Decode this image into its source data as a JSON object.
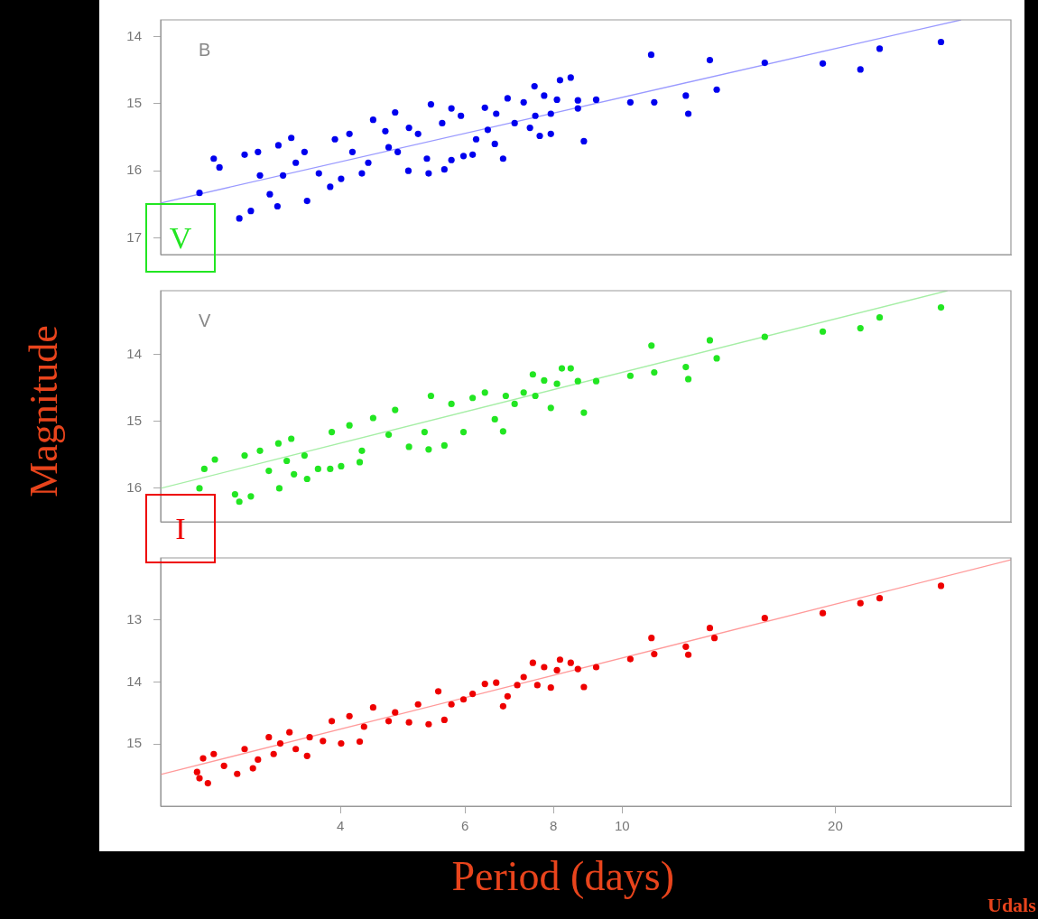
{
  "chart_data": [
    {
      "type": "scatter",
      "annotations": [
        "B",
        "V"
      ],
      "xlim": [
        2.23,
        35.4
      ],
      "xticks": [
        4,
        6,
        8,
        10,
        20
      ],
      "log": "x",
      "ylim": [
        17.25,
        13.75
      ],
      "yticks": [
        14,
        15,
        16,
        17
      ],
      "grid": false,
      "marker": "circle",
      "tick_labels": "y",
      "series": [
        {
          "type": "scatter",
          "color": "#0000ee",
          "x": [
            2.53,
            2.65,
            2.7,
            2.88,
            2.99,
            2.93,
            3.06,
            3.27,
            3.41,
            3.26,
            3.59,
            3.18,
            3.08,
            3.32,
            3.46,
            3.56,
            3.73,
            3.87,
            3.93,
            4.12,
            4.16,
            4.01,
            4.29,
            4.45,
            4.38,
            4.63,
            4.78,
            4.68,
            4.82,
            4.99,
            5.0,
            5.15,
            5.33,
            5.37,
            5.3,
            5.57,
            5.61,
            5.74,
            5.74,
            5.92,
            5.97,
            6.15,
            6.22,
            6.4,
            6.46,
            6.61,
            6.64,
            6.79,
            6.89,
            7.05,
            7.26,
            7.41,
            7.52,
            7.54,
            7.76,
            7.65,
            7.93,
            7.93,
            8.09,
            8.17,
            8.46,
            8.66,
            8.66,
            8.83,
            9.19,
            10.27,
            10.99,
            11.1,
            12.3,
            12.4,
            13.3,
            13.6,
            15.9,
            19.2,
            21.7,
            23.1,
            28.2
          ],
          "values": [
            16.33,
            15.82,
            15.95,
            16.71,
            16.6,
            15.76,
            15.72,
            15.62,
            15.51,
            16.53,
            16.45,
            16.35,
            16.07,
            16.07,
            15.88,
            15.72,
            16.04,
            16.24,
            15.53,
            15.45,
            15.72,
            16.12,
            16.04,
            15.24,
            15.88,
            15.41,
            15.13,
            15.65,
            15.72,
            16.0,
            15.36,
            15.45,
            16.04,
            15.01,
            15.82,
            15.29,
            15.98,
            15.07,
            15.84,
            15.18,
            15.78,
            15.76,
            15.53,
            15.06,
            15.39,
            15.6,
            15.15,
            15.82,
            14.92,
            15.29,
            14.98,
            15.36,
            14.74,
            15.18,
            14.88,
            15.48,
            15.45,
            15.15,
            14.94,
            14.65,
            14.61,
            14.95,
            15.07,
            15.56,
            14.94,
            14.98,
            14.27,
            14.98,
            14.88,
            15.15,
            14.35,
            14.79,
            14.39,
            14.4,
            14.49,
            14.18,
            14.08
          ]
        },
        {
          "type": "line",
          "color": "#9a9aff",
          "marker": "none",
          "x": [
            2.23,
            30.1
          ],
          "values": [
            16.48,
            13.75
          ]
        }
      ]
    },
    {
      "type": "scatter",
      "annotations": [
        "V",
        "I"
      ],
      "xlim": [
        2.23,
        35.4
      ],
      "xticks": [
        4,
        6,
        8,
        10,
        20
      ],
      "log": "x",
      "ylim": [
        16.5,
        13.05
      ],
      "yticks": [
        14,
        15,
        16
      ],
      "grid": false,
      "marker": "circle",
      "tick_labels": "y",
      "ylabel": "Magnitude",
      "series": [
        {
          "type": "scatter",
          "color": "#22e622",
          "x": [
            2.53,
            2.57,
            2.66,
            2.84,
            2.88,
            2.99,
            2.93,
            3.08,
            3.27,
            3.41,
            3.28,
            3.44,
            3.59,
            3.17,
            3.36,
            3.56,
            3.72,
            3.89,
            3.87,
            4.01,
            4.12,
            4.26,
            4.45,
            4.29,
            4.78,
            4.68,
            5.0,
            5.33,
            5.37,
            5.26,
            5.61,
            5.74,
            5.97,
            6.15,
            6.4,
            6.61,
            6.79,
            6.85,
            7.05,
            7.26,
            7.48,
            7.54,
            7.76,
            7.93,
            8.09,
            8.22,
            8.46,
            8.66,
            8.83,
            9.19,
            10.27,
            11.0,
            11.1,
            12.3,
            12.4,
            13.3,
            13.6,
            15.9,
            19.2,
            21.7,
            23.1,
            28.2
          ],
          "values": [
            16.0,
            15.71,
            15.57,
            16.09,
            16.2,
            16.12,
            15.51,
            15.44,
            15.33,
            15.26,
            16.0,
            15.79,
            15.86,
            15.74,
            15.59,
            15.51,
            15.71,
            15.16,
            15.71,
            15.67,
            15.06,
            15.61,
            14.95,
            15.44,
            14.83,
            15.2,
            15.38,
            15.42,
            14.62,
            15.16,
            15.36,
            14.74,
            15.16,
            14.65,
            14.57,
            14.97,
            15.15,
            14.62,
            14.74,
            14.57,
            14.3,
            14.62,
            14.39,
            14.8,
            14.44,
            14.21,
            14.21,
            14.4,
            14.87,
            14.4,
            14.32,
            13.87,
            14.27,
            14.19,
            14.37,
            13.79,
            14.06,
            13.74,
            13.66,
            13.61,
            13.45,
            13.3
          ]
        },
        {
          "type": "line",
          "color": "#a6eea6",
          "marker": "none",
          "x": [
            2.23,
            28.8
          ],
          "values": [
            16.0,
            13.05
          ]
        }
      ]
    },
    {
      "type": "scatter",
      "annotations": [
        "Udals"
      ],
      "xlim": [
        2.23,
        35.4
      ],
      "xticks": [
        4,
        6,
        8,
        10,
        20
      ],
      "log": "x",
      "ylim": [
        16,
        12
      ],
      "yticks": [
        13,
        14,
        15
      ],
      "grid": false,
      "marker": "circle",
      "xlabel": "Period (days)",
      "series": [
        {
          "type": "scatter",
          "color": "#ee0000",
          "x": [
            2.51,
            2.53,
            2.6,
            2.56,
            2.65,
            2.74,
            2.86,
            2.93,
            3.01,
            3.06,
            3.17,
            3.22,
            3.29,
            3.39,
            3.46,
            3.59,
            3.62,
            3.78,
            3.89,
            4.01,
            4.12,
            4.26,
            4.32,
            4.45,
            4.68,
            4.78,
            5.0,
            5.15,
            5.33,
            5.5,
            5.61,
            5.74,
            5.97,
            6.15,
            6.4,
            6.64,
            6.79,
            6.89,
            7.11,
            7.26,
            7.48,
            7.59,
            7.76,
            7.93,
            8.09,
            8.17,
            8.46,
            8.66,
            8.83,
            9.19,
            10.27,
            11.0,
            11.1,
            12.3,
            12.4,
            13.3,
            13.5,
            15.9,
            19.2,
            21.7,
            23.1,
            28.2
          ],
          "values": [
            15.45,
            15.55,
            15.63,
            15.23,
            15.16,
            15.35,
            15.48,
            15.08,
            15.39,
            15.25,
            14.89,
            15.16,
            14.99,
            14.81,
            15.08,
            15.19,
            14.89,
            14.95,
            14.63,
            14.99,
            14.55,
            14.96,
            14.72,
            14.41,
            14.63,
            14.49,
            14.65,
            14.36,
            14.68,
            14.15,
            14.61,
            14.36,
            14.28,
            14.19,
            14.03,
            14.01,
            14.39,
            14.23,
            14.05,
            13.92,
            13.69,
            14.05,
            13.76,
            14.09,
            13.81,
            13.64,
            13.69,
            13.79,
            14.08,
            13.76,
            13.63,
            13.29,
            13.55,
            13.43,
            13.56,
            13.13,
            13.29,
            12.97,
            12.89,
            12.73,
            12.65,
            12.45
          ]
        },
        {
          "type": "line",
          "color": "#ff9a9a",
          "marker": "none",
          "x": [
            2.23,
            35.4
          ],
          "values": [
            15.49,
            12.03
          ]
        }
      ]
    }
  ]
}
